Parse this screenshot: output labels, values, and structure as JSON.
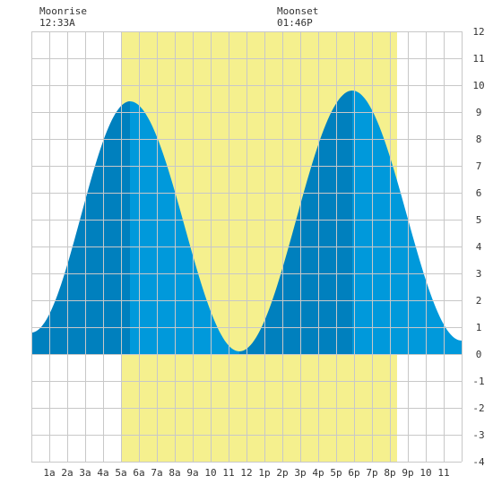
{
  "moon": {
    "moonrise_label": "Moonrise",
    "moonrise_time": "12:33A",
    "moonset_label": "Moonset",
    "moonset_time": "01:46P"
  },
  "chart_data": {
    "type": "area",
    "title": "",
    "xlabel": "",
    "ylabel": "",
    "x_unit": "hour of day",
    "xlim": [
      0,
      24
    ],
    "ylim": [
      -4,
      12
    ],
    "grid": true,
    "x_ticks": [
      {
        "x": 1,
        "label": "1a"
      },
      {
        "x": 2,
        "label": "2a"
      },
      {
        "x": 3,
        "label": "3a"
      },
      {
        "x": 4,
        "label": "4a"
      },
      {
        "x": 5,
        "label": "5a"
      },
      {
        "x": 6,
        "label": "6a"
      },
      {
        "x": 7,
        "label": "7a"
      },
      {
        "x": 8,
        "label": "8a"
      },
      {
        "x": 9,
        "label": "9a"
      },
      {
        "x": 10,
        "label": "10"
      },
      {
        "x": 11,
        "label": "11"
      },
      {
        "x": 12,
        "label": "12"
      },
      {
        "x": 13,
        "label": "1p"
      },
      {
        "x": 14,
        "label": "2p"
      },
      {
        "x": 15,
        "label": "3p"
      },
      {
        "x": 16,
        "label": "4p"
      },
      {
        "x": 17,
        "label": "5p"
      },
      {
        "x": 18,
        "label": "6p"
      },
      {
        "x": 19,
        "label": "7p"
      },
      {
        "x": 20,
        "label": "8p"
      },
      {
        "x": 21,
        "label": "9p"
      },
      {
        "x": 22,
        "label": "10"
      },
      {
        "x": 23,
        "label": "11"
      }
    ],
    "y_ticks": [
      12,
      11,
      10,
      9,
      8,
      7,
      6,
      5,
      4,
      3,
      2,
      1,
      0,
      -1,
      -2,
      -3,
      -4
    ],
    "daylight": {
      "start": 5.0,
      "end": 20.4
    },
    "tide_extremes": [
      {
        "x": 0.0,
        "y": 0.8
      },
      {
        "x": 5.5,
        "y": 9.4
      },
      {
        "x": 11.6,
        "y": 0.1
      },
      {
        "x": 17.9,
        "y": 9.8
      },
      {
        "x": 24.0,
        "y": 0.5
      }
    ],
    "colors": {
      "daylight": "#f5f08e",
      "flood": "#0080be",
      "ebb": "#0099db",
      "grid": "#c8c8c8",
      "background": "#ffffff"
    }
  }
}
